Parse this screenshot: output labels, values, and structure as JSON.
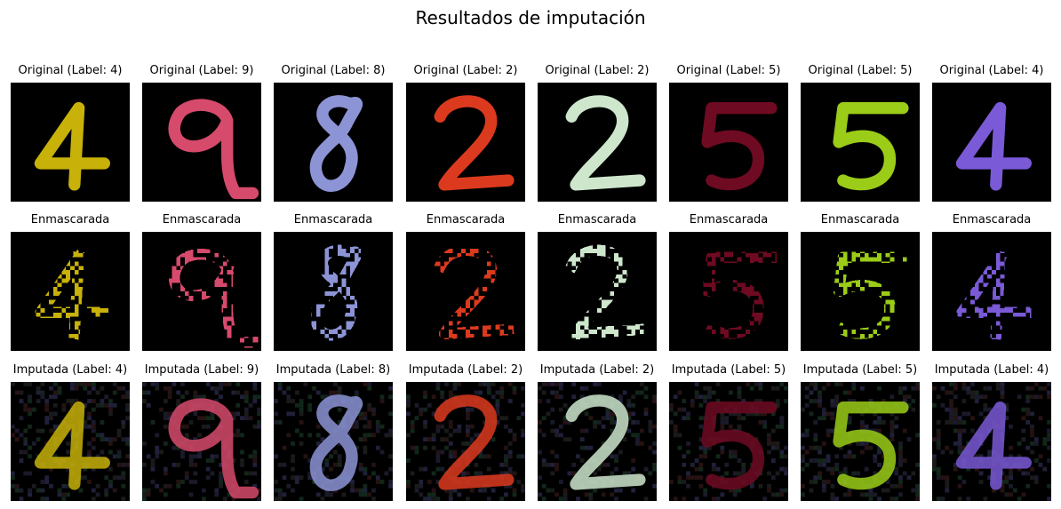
{
  "title": "Resultados de imputación",
  "rows": [
    {
      "name": "original",
      "cells": [
        {
          "title": "Original (Label: 4)",
          "digit": "4",
          "color": "#c8b20a"
        },
        {
          "title": "Original (Label: 9)",
          "digit": "9",
          "color": "#d64a6c"
        },
        {
          "title": "Original (Label: 8)",
          "digit": "8",
          "color": "#8c94d6"
        },
        {
          "title": "Original (Label: 2)",
          "digit": "2",
          "color": "#dc3a1e"
        },
        {
          "title": "Original (Label: 2)",
          "digit": "2",
          "color": "#cde6cc"
        },
        {
          "title": "Original (Label: 5)",
          "digit": "5",
          "color": "#6e0a22"
        },
        {
          "title": "Original (Label: 5)",
          "digit": "5",
          "color": "#9acc18"
        },
        {
          "title": "Original (Label: 4)",
          "digit": "4",
          "color": "#7a5ad6"
        }
      ]
    },
    {
      "name": "masked",
      "cells": [
        {
          "title": "Enmascarada",
          "digit": "4",
          "color": "#c8b20a"
        },
        {
          "title": "Enmascarada",
          "digit": "9",
          "color": "#d64a6c"
        },
        {
          "title": "Enmascarada",
          "digit": "8",
          "color": "#8c94d6"
        },
        {
          "title": "Enmascarada",
          "digit": "2",
          "color": "#dc3a1e"
        },
        {
          "title": "Enmascarada",
          "digit": "2",
          "color": "#cde6cc"
        },
        {
          "title": "Enmascarada",
          "digit": "5",
          "color": "#6e0a22"
        },
        {
          "title": "Enmascarada",
          "digit": "5",
          "color": "#9acc18"
        },
        {
          "title": "Enmascarada",
          "digit": "4",
          "color": "#7a5ad6"
        }
      ]
    },
    {
      "name": "imputed",
      "cells": [
        {
          "title": "Imputada (Label: 4)",
          "digit": "4",
          "color": "#c8b20a"
        },
        {
          "title": "Imputada (Label: 9)",
          "digit": "9",
          "color": "#d64a6c"
        },
        {
          "title": "Imputada (Label: 8)",
          "digit": "8",
          "color": "#8c94d6"
        },
        {
          "title": "Imputada (Label: 2)",
          "digit": "2",
          "color": "#dc3a1e"
        },
        {
          "title": "Imputada (Label: 2)",
          "digit": "2",
          "color": "#cde6cc"
        },
        {
          "title": "Imputada (Label: 5)",
          "digit": "5",
          "color": "#6e0a22"
        },
        {
          "title": "Imputada (Label: 5)",
          "digit": "5",
          "color": "#9acc18"
        },
        {
          "title": "Imputada (Label: 4)",
          "digit": "4",
          "color": "#7a5ad6"
        }
      ]
    }
  ]
}
